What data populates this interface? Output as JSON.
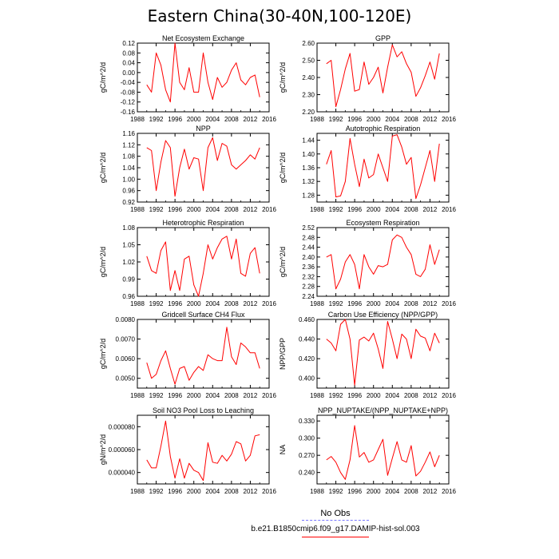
{
  "title": "Eastern China(30-40N,100-120E)",
  "legend": {
    "obs_label": "No Obs",
    "case_label": "b.e21.B1850cmip6.f09_g17.DAMIP-hist-sol.003",
    "obs_color": "#7777ff",
    "case_color": "#ff0000"
  },
  "chart_data": [
    {
      "type": "line",
      "title": "Net Ecosystem Exchange",
      "ylabel": "gC/m^2/d",
      "xlim": [
        1988,
        2016
      ],
      "ylim": [
        -0.16,
        0.12
      ],
      "xticks": [
        "1988",
        "1992",
        "1996",
        "2000",
        "2004",
        "2008",
        "2012",
        "2016"
      ],
      "yticks": [
        "-0.16",
        "-0.12",
        "-0.08",
        "-0.04",
        "0.00",
        "0.04",
        "0.08",
        "0.12"
      ],
      "series": [
        {
          "color": "#ff0000",
          "x": [
            1990,
            1991,
            1992,
            1993,
            1994,
            1995,
            1996,
            1997,
            1998,
            1999,
            2000,
            2001,
            2002,
            2003,
            2004,
            2005,
            2006,
            2007,
            2008,
            2009,
            2010,
            2011,
            2012,
            2013,
            2014
          ],
          "values": [
            -0.05,
            -0.08,
            0.08,
            0.03,
            -0.07,
            -0.12,
            0.12,
            -0.04,
            -0.07,
            0.02,
            -0.08,
            -0.08,
            0.08,
            -0.04,
            -0.11,
            -0.02,
            -0.06,
            -0.04,
            0.01,
            0.04,
            -0.03,
            -0.05,
            -0.02,
            -0.01,
            -0.1
          ]
        }
      ]
    },
    {
      "type": "line",
      "title": "GPP",
      "ylabel": "gC/m^2/d",
      "xlim": [
        1988,
        2016
      ],
      "ylim": [
        2.2,
        2.6
      ],
      "xticks": [
        "1988",
        "1992",
        "1996",
        "2000",
        "2004",
        "2008",
        "2012",
        "2016"
      ],
      "yticks": [
        "2.20",
        "2.30",
        "2.40",
        "2.50",
        "2.60"
      ],
      "series": [
        {
          "color": "#ff0000",
          "x": [
            1990,
            1991,
            1992,
            1993,
            1994,
            1995,
            1996,
            1997,
            1998,
            1999,
            2000,
            2001,
            2002,
            2003,
            2004,
            2005,
            2006,
            2007,
            2008,
            2009,
            2010,
            2011,
            2012,
            2013,
            2014
          ],
          "values": [
            2.48,
            2.5,
            2.23,
            2.33,
            2.45,
            2.54,
            2.32,
            2.33,
            2.49,
            2.36,
            2.4,
            2.46,
            2.31,
            2.46,
            2.59,
            2.52,
            2.55,
            2.48,
            2.43,
            2.29,
            2.34,
            2.41,
            2.49,
            2.39,
            2.54
          ]
        }
      ]
    },
    {
      "type": "line",
      "title": "NPP",
      "ylabel": "gC/m^2/d",
      "xlim": [
        1988,
        2016
      ],
      "ylim": [
        0.92,
        1.16
      ],
      "xticks": [
        "1988",
        "1992",
        "1996",
        "2000",
        "2004",
        "2008",
        "2012",
        "2016"
      ],
      "yticks": [
        "0.92",
        "0.96",
        "1.00",
        "1.04",
        "1.08",
        "1.12",
        "1.16"
      ],
      "series": [
        {
          "color": "#ff0000",
          "x": [
            1990,
            1991,
            1992,
            1993,
            1994,
            1995,
            1996,
            1997,
            1998,
            1999,
            2000,
            2001,
            2002,
            2003,
            2004,
            2005,
            2006,
            2007,
            2008,
            2009,
            2010,
            2011,
            2012,
            2013,
            2014
          ],
          "values": [
            1.11,
            1.1,
            0.96,
            1.06,
            1.135,
            1.11,
            0.94,
            1.04,
            1.105,
            1.035,
            1.075,
            1.07,
            0.96,
            1.11,
            1.145,
            1.065,
            1.125,
            1.115,
            1.05,
            1.035,
            1.05,
            1.065,
            1.085,
            1.07,
            1.11
          ]
        }
      ]
    },
    {
      "type": "line",
      "title": "Autotrophic Respiration",
      "ylabel": "gC/m^2/d",
      "xlim": [
        1988,
        2016
      ],
      "ylim": [
        1.26,
        1.46
      ],
      "xticks": [
        "1988",
        "1992",
        "1996",
        "2000",
        "2004",
        "2008",
        "2012",
        "2016"
      ],
      "yticks": [
        "1.28",
        "1.32",
        "1.36",
        "1.40",
        "1.44"
      ],
      "series": [
        {
          "color": "#ff0000",
          "x": [
            1990,
            1991,
            1992,
            1993,
            1994,
            1995,
            1996,
            1997,
            1998,
            1999,
            2000,
            2001,
            2002,
            2003,
            2004,
            2005,
            2006,
            2007,
            2008,
            2009,
            2010,
            2011,
            2012,
            2013,
            2014
          ],
          "values": [
            1.37,
            1.41,
            1.275,
            1.278,
            1.32,
            1.445,
            1.37,
            1.305,
            1.385,
            1.33,
            1.34,
            1.4,
            1.36,
            1.32,
            1.452,
            1.456,
            1.42,
            1.37,
            1.39,
            1.27,
            1.31,
            1.36,
            1.41,
            1.32,
            1.43
          ]
        }
      ]
    },
    {
      "type": "line",
      "title": "Heterotrophic Respiration",
      "ylabel": "gC/m^2/d",
      "xlim": [
        1988,
        2016
      ],
      "ylim": [
        0.96,
        1.08
      ],
      "xticks": [
        "1988",
        "1992",
        "1996",
        "2000",
        "2004",
        "2008",
        "2012",
        "2016"
      ],
      "yticks": [
        "0.96",
        "0.99",
        "1.02",
        "1.05",
        "1.08"
      ],
      "series": [
        {
          "color": "#ff0000",
          "x": [
            1990,
            1991,
            1992,
            1993,
            1994,
            1995,
            1996,
            1997,
            1998,
            1999,
            2000,
            2001,
            2002,
            2003,
            2004,
            2005,
            2006,
            2007,
            2008,
            2009,
            2010,
            2011,
            2012,
            2013,
            2014
          ],
          "values": [
            1.03,
            1.005,
            1.0,
            1.04,
            1.055,
            0.97,
            1.005,
            0.97,
            1.025,
            1.03,
            0.98,
            0.96,
            1.0,
            1.05,
            1.025,
            1.045,
            1.06,
            1.065,
            1.025,
            1.06,
            1.0,
            0.995,
            1.035,
            1.045,
            1.0
          ]
        }
      ]
    },
    {
      "type": "line",
      "title": "Ecosystem Respiration",
      "ylabel": "gC/m^2/d",
      "xlim": [
        1988,
        2016
      ],
      "ylim": [
        2.24,
        2.52
      ],
      "xticks": [
        "1988",
        "1992",
        "1996",
        "2000",
        "2004",
        "2008",
        "2012",
        "2016"
      ],
      "yticks": [
        "2.24",
        "2.28",
        "2.32",
        "2.36",
        "2.40",
        "2.44",
        "2.48",
        "2.52"
      ],
      "series": [
        {
          "color": "#ff0000",
          "x": [
            1990,
            1991,
            1992,
            1993,
            1994,
            1995,
            1996,
            1997,
            1998,
            1999,
            2000,
            2001,
            2002,
            2003,
            2004,
            2005,
            2006,
            2007,
            2008,
            2009,
            2010,
            2011,
            2012,
            2013,
            2014
          ],
          "values": [
            2.4,
            2.41,
            2.27,
            2.31,
            2.38,
            2.41,
            2.37,
            2.27,
            2.41,
            2.36,
            2.33,
            2.365,
            2.36,
            2.37,
            2.47,
            2.49,
            2.48,
            2.44,
            2.41,
            2.33,
            2.32,
            2.35,
            2.45,
            2.37,
            2.43
          ]
        }
      ]
    },
    {
      "type": "line",
      "title": "Gridcell Surface CH4 Flux",
      "ylabel": "gC/m^2/d",
      "xlim": [
        1988,
        2016
      ],
      "ylim": [
        0.0045,
        0.008
      ],
      "xticks": [
        "1988",
        "1992",
        "1996",
        "2000",
        "2004",
        "2008",
        "2012",
        "2016"
      ],
      "yticks": [
        "0.0050",
        "0.0060",
        "0.0070",
        "0.0080"
      ],
      "series": [
        {
          "color": "#ff0000",
          "x": [
            1990,
            1991,
            1992,
            1993,
            1994,
            1995,
            1996,
            1997,
            1998,
            1999,
            2000,
            2001,
            2002,
            2003,
            2004,
            2005,
            2006,
            2007,
            2008,
            2009,
            2010,
            2011,
            2012,
            2013,
            2014
          ],
          "values": [
            0.0058,
            0.005,
            0.0052,
            0.0059,
            0.0064,
            0.0055,
            0.0047,
            0.0055,
            0.0056,
            0.0049,
            0.0053,
            0.0056,
            0.0054,
            0.0062,
            0.006,
            0.0059,
            0.0059,
            0.0076,
            0.0061,
            0.0057,
            0.0068,
            0.0066,
            0.0063,
            0.0063,
            0.0055
          ]
        }
      ]
    },
    {
      "type": "line",
      "title": "Carbon Use Efficiency (NPP/GPP)",
      "ylabel": "NPP/GPP",
      "xlim": [
        1988,
        2016
      ],
      "ylim": [
        0.39,
        0.46
      ],
      "xticks": [
        "1988",
        "1992",
        "1996",
        "2000",
        "2004",
        "2008",
        "2012",
        "2016"
      ],
      "yticks": [
        "0.400",
        "0.420",
        "0.440",
        "0.460"
      ],
      "series": [
        {
          "color": "#ff0000",
          "x": [
            1990,
            1991,
            1992,
            1993,
            1994,
            1995,
            1996,
            1997,
            1998,
            1999,
            2000,
            2001,
            2002,
            2003,
            2004,
            2005,
            2006,
            2007,
            2008,
            2009,
            2010,
            2011,
            2012,
            2013,
            2014
          ],
          "values": [
            0.44,
            0.436,
            0.428,
            0.455,
            0.462,
            0.44,
            0.393,
            0.439,
            0.442,
            0.438,
            0.446,
            0.43,
            0.41,
            0.458,
            0.44,
            0.42,
            0.445,
            0.44,
            0.42,
            0.45,
            0.443,
            0.441,
            0.428,
            0.446,
            0.436
          ]
        }
      ]
    },
    {
      "type": "line",
      "title": "Soil NO3 Pool Loss to Leaching",
      "ylabel": "gN/m^2/d",
      "xlim": [
        1988,
        2016
      ],
      "ylim": [
        3e-05,
        9e-05
      ],
      "xticks": [
        "1988",
        "1992",
        "1996",
        "2000",
        "2004",
        "2008",
        "2012",
        "2016"
      ],
      "yticks": [
        "0.000040",
        "0.000060",
        "0.000080"
      ],
      "series": [
        {
          "color": "#ff0000",
          "x": [
            1990,
            1991,
            1992,
            1993,
            1994,
            1995,
            1996,
            1997,
            1998,
            1999,
            2000,
            2001,
            2002,
            2003,
            2004,
            2005,
            2006,
            2007,
            2008,
            2009,
            2010,
            2011,
            2012,
            2013,
            2014
          ],
          "values": [
            5.1e-05,
            4.4e-05,
            4.4e-05,
            6.3e-05,
            8.5e-05,
            5.4e-05,
            3.5e-05,
            5.2e-05,
            3.5e-05,
            4.8e-05,
            4.2e-05,
            4e-05,
            3.3e-05,
            6.6e-05,
            4.9e-05,
            4.8e-05,
            5.5e-05,
            5e-05,
            5.6e-05,
            6.7e-05,
            6.5e-05,
            5e-05,
            5.5e-05,
            7.2e-05,
            7.3e-05
          ]
        }
      ]
    },
    {
      "type": "line",
      "title": "NPP_NUPTAKE/(NPP_NUPTAKE+NPP)",
      "ylabel": "NA",
      "xlim": [
        1988,
        2016
      ],
      "ylim": [
        0.22,
        0.34
      ],
      "xticks": [
        "1988",
        "1992",
        "1996",
        "2000",
        "2004",
        "2008",
        "2012",
        "2016"
      ],
      "yticks": [
        "0.240",
        "0.270",
        "0.300",
        "0.330"
      ],
      "series": [
        {
          "color": "#ff0000",
          "x": [
            1990,
            1991,
            1992,
            1993,
            1994,
            1995,
            1996,
            1997,
            1998,
            1999,
            2000,
            2001,
            2002,
            2003,
            2004,
            2005,
            2006,
            2007,
            2008,
            2009,
            2010,
            2011,
            2012,
            2013,
            2014
          ],
          "values": [
            0.262,
            0.268,
            0.258,
            0.24,
            0.228,
            0.262,
            0.322,
            0.267,
            0.275,
            0.258,
            0.262,
            0.28,
            0.298,
            0.235,
            0.265,
            0.294,
            0.262,
            0.258,
            0.287,
            0.234,
            0.242,
            0.258,
            0.276,
            0.25,
            0.27
          ]
        }
      ]
    }
  ]
}
